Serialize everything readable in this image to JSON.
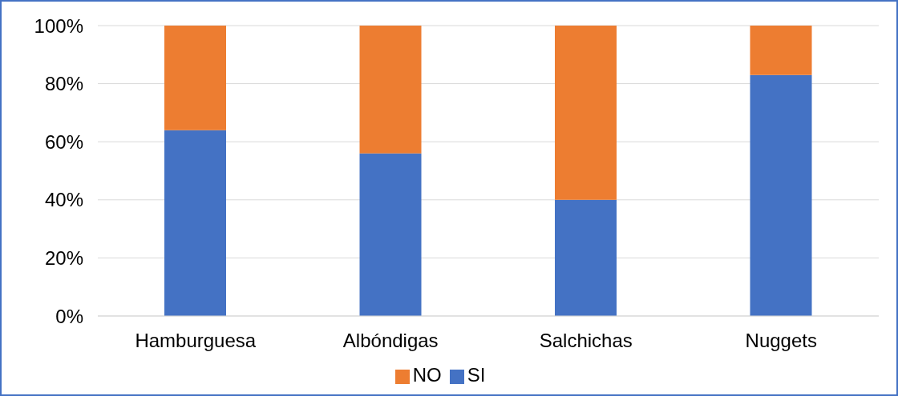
{
  "chart_data": {
    "type": "bar",
    "stacked": true,
    "categories": [
      "Hamburguesa",
      "Albóndigas",
      "Salchichas",
      "Nuggets"
    ],
    "series": [
      {
        "name": "SI",
        "color": "#4472c4",
        "values": [
          64,
          56,
          40,
          83
        ]
      },
      {
        "name": "NO",
        "color": "#ed7d31",
        "values": [
          36,
          44,
          60,
          17
        ]
      }
    ],
    "ylim": [
      0,
      100
    ],
    "yticks": [
      {
        "value": 0,
        "label": "0%"
      },
      {
        "value": 20,
        "label": "20%"
      },
      {
        "value": 40,
        "label": "40%"
      },
      {
        "value": 60,
        "label": "60%"
      },
      {
        "value": 80,
        "label": "80%"
      },
      {
        "value": 100,
        "label": "100%"
      }
    ],
    "grid": "y",
    "legend": "bottom"
  }
}
